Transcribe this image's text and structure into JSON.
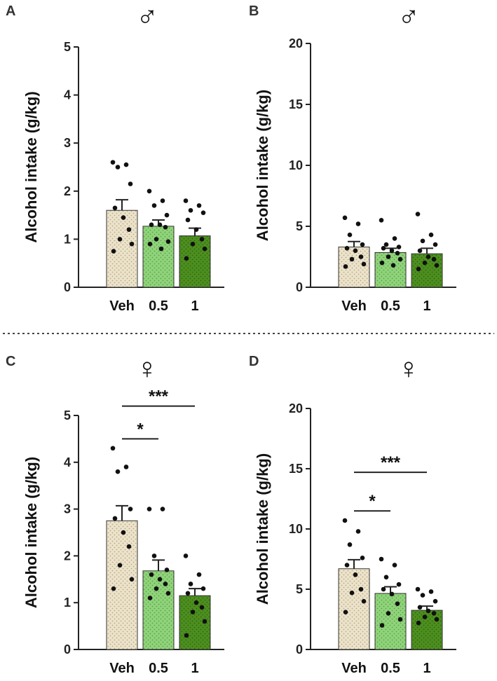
{
  "colors": {
    "veh": "#ede3ca",
    "dose_05": "#8fd47a",
    "dose_1": "#4d8f1f",
    "axis": "#222222",
    "dot": "#111111"
  },
  "divider": "dotted",
  "chart_data": [
    {
      "type": "bar",
      "panel": "A",
      "sex_symbol": "♂",
      "ylabel": "Alcohol intake (g/kg)",
      "ylim": [
        0,
        5
      ],
      "yticks": [
        0,
        1,
        2,
        3,
        4,
        5
      ],
      "categories": [
        "Veh",
        "0.5",
        "1"
      ],
      "values": [
        1.6,
        1.27,
        1.07
      ],
      "sem": [
        0.22,
        0.13,
        0.16
      ],
      "points": [
        [
          2.6,
          2.55,
          2.5,
          2.15,
          1.65,
          1.45,
          1.2,
          1.0,
          0.9,
          0.75
        ],
        [
          2.0,
          1.8,
          1.7,
          1.5,
          1.3,
          1.3,
          1.25,
          1.0,
          0.95,
          0.9,
          0.8
        ],
        [
          1.8,
          1.7,
          1.6,
          1.55,
          1.4,
          1.2,
          1.0,
          0.9,
          0.8,
          0.6
        ]
      ],
      "significance": []
    },
    {
      "type": "bar",
      "panel": "B",
      "sex_symbol": "♂",
      "ylabel": "Alcohol intake (g/kg)",
      "ylim": [
        0,
        20
      ],
      "yticks": [
        0,
        5,
        10,
        15,
        20
      ],
      "categories": [
        "Veh",
        "0.5",
        "1"
      ],
      "values": [
        3.3,
        2.85,
        2.75
      ],
      "sem": [
        0.45,
        0.35,
        0.45
      ],
      "points": [
        [
          5.7,
          5.2,
          4.3,
          3.5,
          3.2,
          3.0,
          2.5,
          2.3,
          1.9,
          1.7
        ],
        [
          5.5,
          4.0,
          3.5,
          3.3,
          3.2,
          3.0,
          2.8,
          2.5,
          2.3,
          2.0,
          1.8
        ],
        [
          6.0,
          4.3,
          3.8,
          3.5,
          3.0,
          2.5,
          2.3,
          2.0,
          1.8,
          1.5
        ]
      ],
      "significance": []
    },
    {
      "type": "bar",
      "panel": "C",
      "sex_symbol": "♀",
      "ylabel": "Alcohol intake (g/kg)",
      "ylim": [
        0,
        5
      ],
      "yticks": [
        0,
        1,
        2,
        3,
        4,
        5
      ],
      "categories": [
        "Veh",
        "0.5",
        "1"
      ],
      "values": [
        2.75,
        1.68,
        1.15
      ],
      "sem": [
        0.32,
        0.23,
        0.15
      ],
      "points": [
        [
          4.3,
          3.9,
          3.8,
          3.0,
          2.8,
          2.5,
          2.2,
          1.8,
          1.5,
          1.3
        ],
        [
          3.0,
          3.0,
          2.0,
          1.7,
          1.6,
          1.5,
          1.4,
          1.3,
          1.2,
          1.1
        ],
        [
          2.0,
          1.6,
          1.4,
          1.3,
          1.2,
          1.0,
          0.9,
          0.8,
          0.6,
          0.3
        ]
      ],
      "significance": [
        {
          "from": 0,
          "to": 1,
          "label": "*",
          "y": 4.5
        },
        {
          "from": 0,
          "to": 2,
          "label": "***",
          "y": 5.2
        }
      ]
    },
    {
      "type": "bar",
      "panel": "D",
      "sex_symbol": "♀",
      "ylabel": "Alcohol intake (g/kg)",
      "ylim": [
        0,
        20
      ],
      "yticks": [
        0,
        5,
        10,
        15,
        20
      ],
      "categories": [
        "Veh",
        "0.5",
        "1"
      ],
      "values": [
        6.7,
        4.65,
        3.25
      ],
      "sem": [
        0.75,
        0.55,
        0.35
      ],
      "points": [
        [
          10.7,
          9.8,
          8.7,
          7.6,
          7.0,
          6.2,
          5.0,
          4.7,
          4.0,
          3.1
        ],
        [
          7.5,
          7.0,
          6.0,
          5.4,
          5.0,
          4.6,
          3.8,
          3.0,
          2.5,
          2.0
        ],
        [
          5.0,
          4.8,
          4.5,
          4.0,
          3.5,
          3.2,
          3.0,
          2.7,
          2.5,
          2.2
        ]
      ],
      "significance": [
        {
          "from": 0,
          "to": 1,
          "label": "*",
          "y": 11.5
        },
        {
          "from": 0,
          "to": 2,
          "label": "***",
          "y": 14.7
        }
      ]
    }
  ]
}
